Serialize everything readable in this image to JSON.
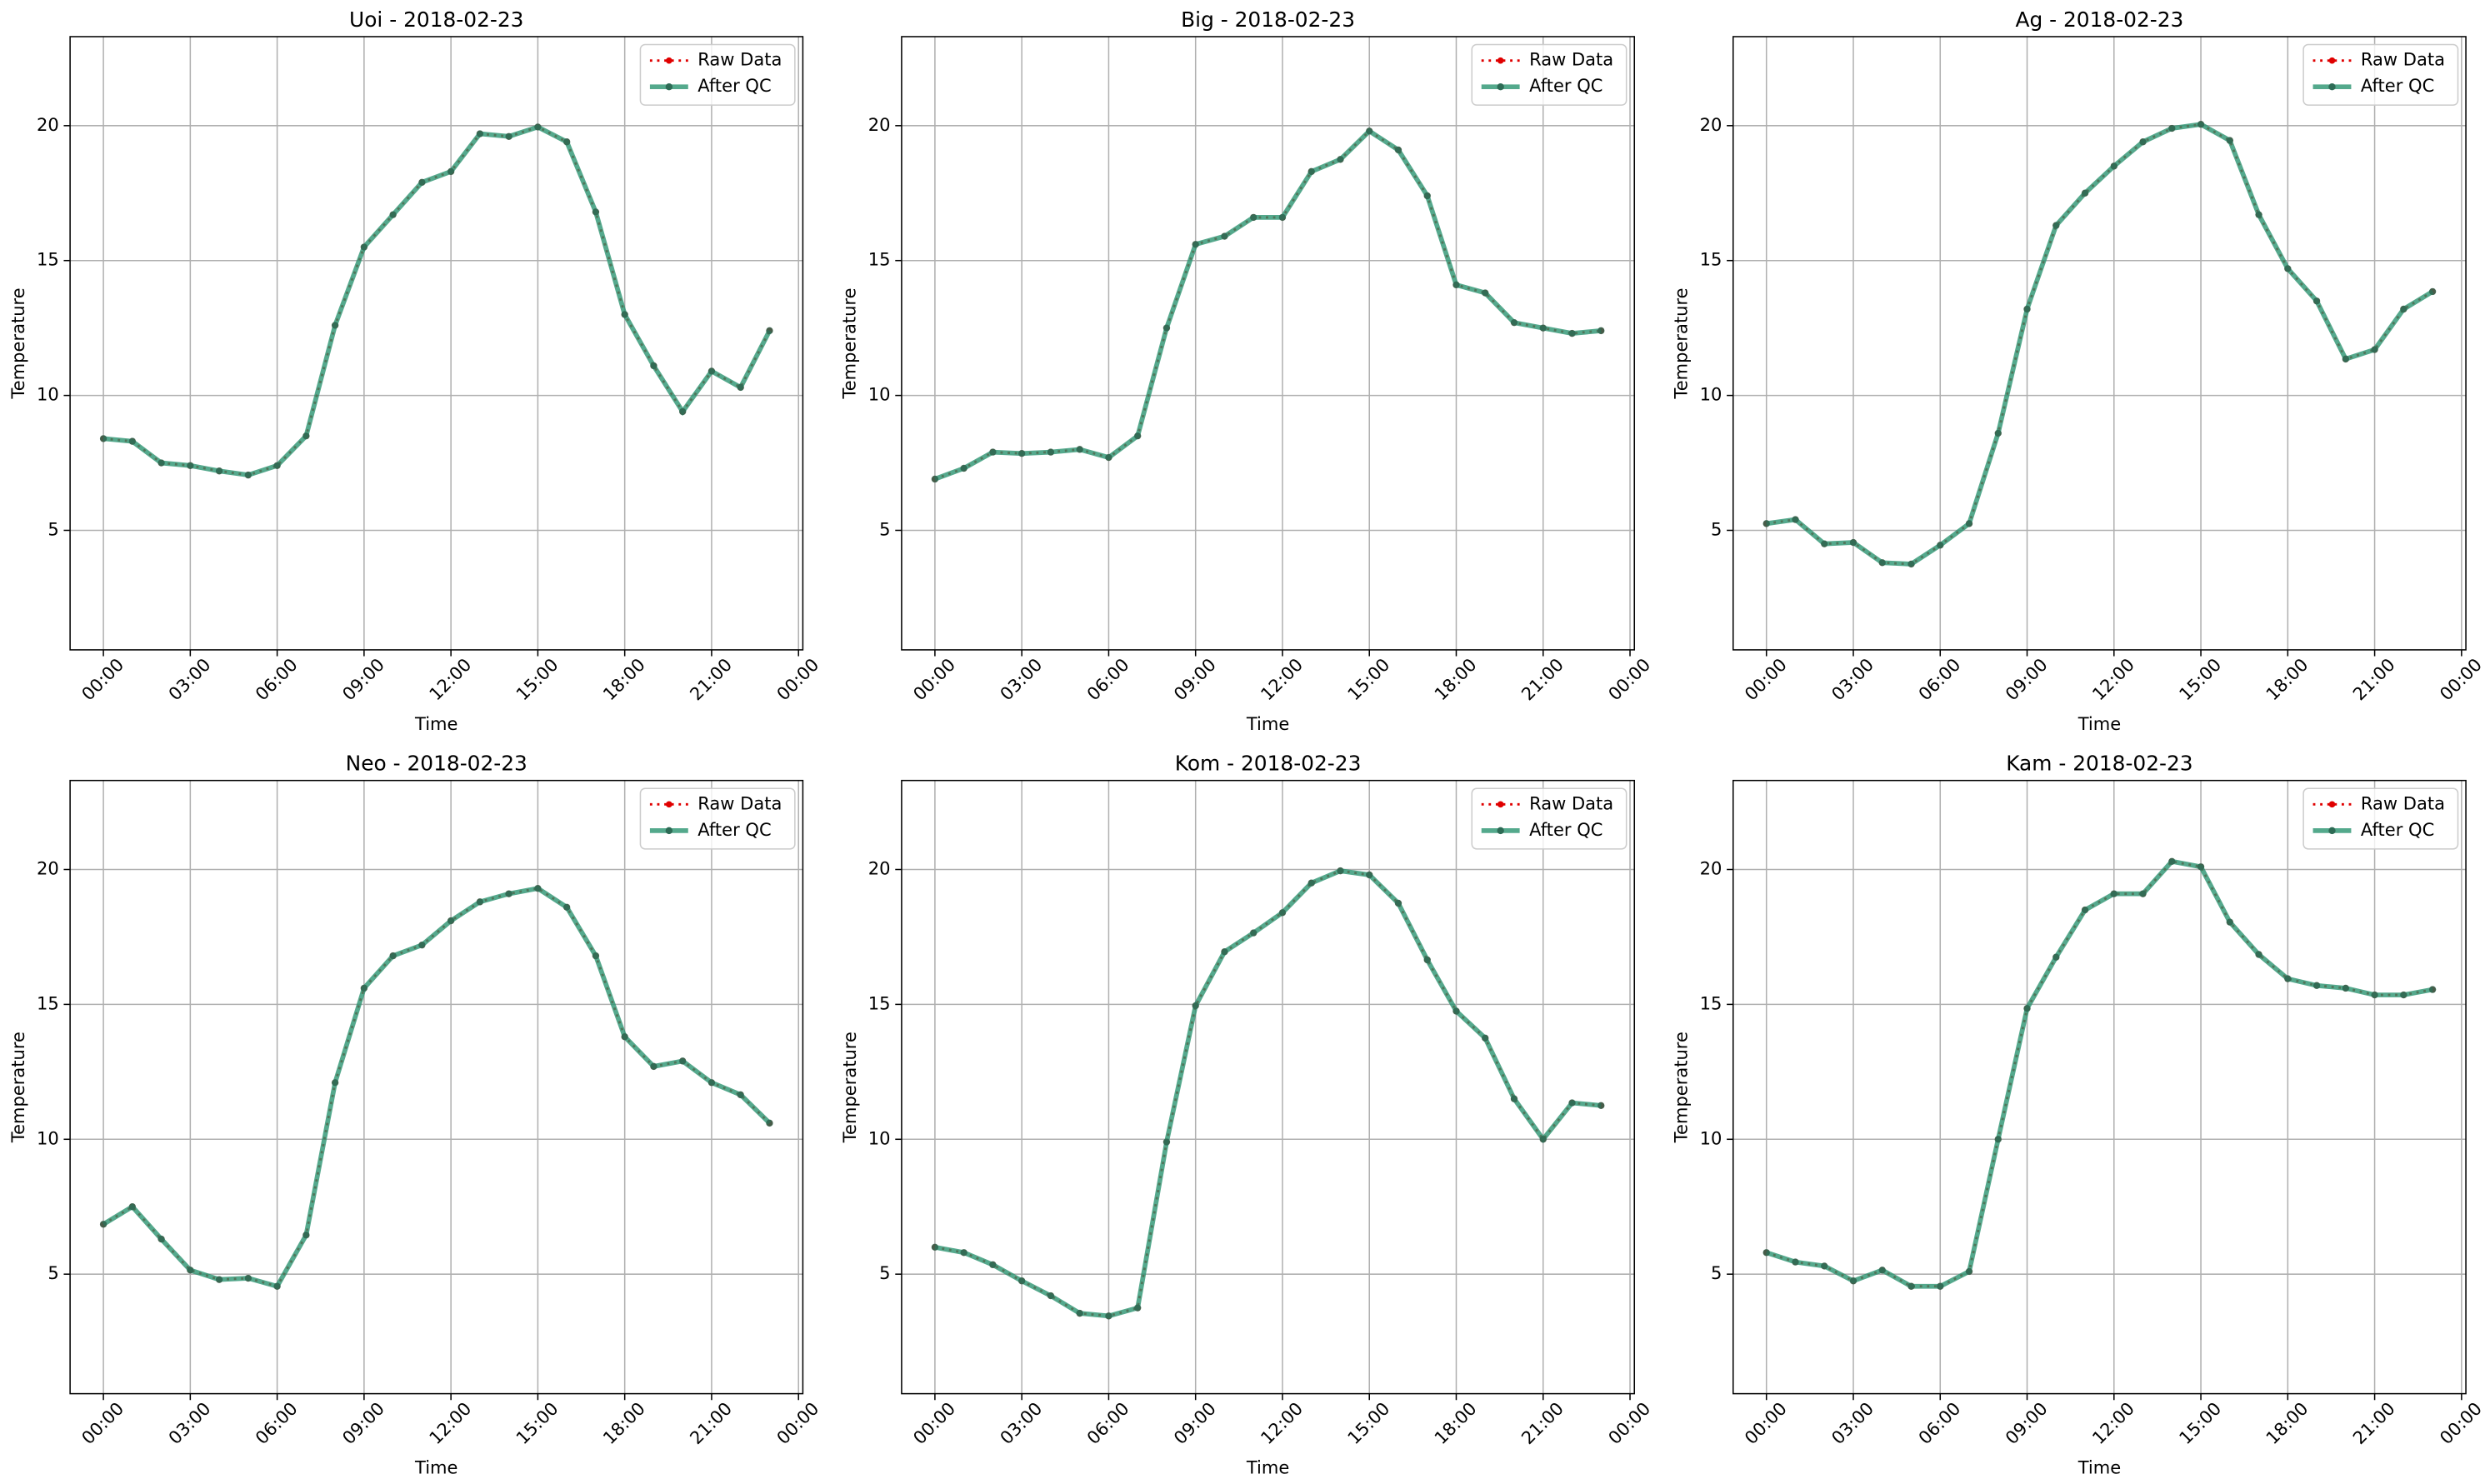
{
  "chart_data": [
    {
      "type": "line",
      "title": "Uoi - 2018-02-23",
      "xlabel": "Time",
      "ylabel": "Temperature",
      "x": [
        0,
        1,
        2,
        3,
        4,
        5,
        6,
        7,
        8,
        9,
        10,
        11,
        12,
        13,
        14,
        15,
        16,
        17,
        18,
        19,
        20,
        21,
        22,
        23
      ],
      "series": [
        {
          "name": "Raw Data",
          "color": "#e00000",
          "values": [
            8.4,
            8.3,
            7.5,
            7.4,
            7.2,
            7.05,
            7.4,
            8.5,
            12.6,
            15.5,
            16.7,
            17.9,
            18.3,
            19.7,
            19.6,
            19.95,
            19.4,
            16.8,
            13.0,
            11.1,
            9.4,
            10.9,
            10.3,
            12.4
          ]
        },
        {
          "name": "After QC",
          "color": "#2a9470",
          "values": [
            8.4,
            8.3,
            7.5,
            7.4,
            7.2,
            7.05,
            7.4,
            8.5,
            12.6,
            15.5,
            16.7,
            17.9,
            18.3,
            19.7,
            19.6,
            19.95,
            19.4,
            16.8,
            13.0,
            11.1,
            9.4,
            10.9,
            10.3,
            12.4
          ]
        }
      ],
      "xlim": [
        -1.15,
        24.15
      ],
      "ylim": [
        0.57,
        23.3
      ],
      "xticks": [
        {
          "value": 0,
          "label": "00:00"
        },
        {
          "value": 3,
          "label": "03:00"
        },
        {
          "value": 6,
          "label": "06:00"
        },
        {
          "value": 9,
          "label": "09:00"
        },
        {
          "value": 12,
          "label": "12:00"
        },
        {
          "value": 15,
          "label": "15:00"
        },
        {
          "value": 18,
          "label": "18:00"
        },
        {
          "value": 21,
          "label": "21:00"
        },
        {
          "value": 24,
          "label": "00:00"
        }
      ],
      "yticks": [
        5,
        10,
        15,
        20
      ],
      "grid": true,
      "legend": "upper right"
    },
    {
      "type": "line",
      "title": "Big - 2018-02-23",
      "xlabel": "Time",
      "ylabel": "Temperature",
      "x": [
        0,
        1,
        2,
        3,
        4,
        5,
        6,
        7,
        8,
        9,
        10,
        11,
        12,
        13,
        14,
        15,
        16,
        17,
        18,
        19,
        20,
        21,
        22,
        23
      ],
      "series": [
        {
          "name": "Raw Data",
          "color": "#e00000",
          "values": [
            6.9,
            7.3,
            7.9,
            7.85,
            7.9,
            8.0,
            7.7,
            8.5,
            12.5,
            15.6,
            15.9,
            16.6,
            16.6,
            18.3,
            18.75,
            19.8,
            19.1,
            17.4,
            14.1,
            13.8,
            12.7,
            12.5,
            12.3,
            12.4
          ]
        },
        {
          "name": "After QC",
          "color": "#2a9470",
          "values": [
            6.9,
            7.3,
            7.9,
            7.85,
            7.9,
            8.0,
            7.7,
            8.5,
            12.5,
            15.6,
            15.9,
            16.6,
            16.6,
            18.3,
            18.75,
            19.8,
            19.1,
            17.4,
            14.1,
            13.8,
            12.7,
            12.5,
            12.3,
            12.4
          ]
        }
      ],
      "xlim": [
        -1.15,
        24.15
      ],
      "ylim": [
        0.57,
        23.3
      ],
      "xticks": [
        {
          "value": 0,
          "label": "00:00"
        },
        {
          "value": 3,
          "label": "03:00"
        },
        {
          "value": 6,
          "label": "06:00"
        },
        {
          "value": 9,
          "label": "09:00"
        },
        {
          "value": 12,
          "label": "12:00"
        },
        {
          "value": 15,
          "label": "15:00"
        },
        {
          "value": 18,
          "label": "18:00"
        },
        {
          "value": 21,
          "label": "21:00"
        },
        {
          "value": 24,
          "label": "00:00"
        }
      ],
      "yticks": [
        5,
        10,
        15,
        20
      ],
      "grid": true,
      "legend": "upper right"
    },
    {
      "type": "line",
      "title": "Ag - 2018-02-23",
      "xlabel": "Time",
      "ylabel": "Temperature",
      "x": [
        0,
        1,
        2,
        3,
        4,
        5,
        6,
        7,
        8,
        9,
        10,
        11,
        12,
        13,
        14,
        15,
        16,
        17,
        18,
        19,
        20,
        21,
        22,
        23
      ],
      "series": [
        {
          "name": "Raw Data",
          "color": "#e00000",
          "values": [
            5.25,
            5.4,
            4.5,
            4.55,
            3.8,
            3.75,
            4.45,
            5.25,
            8.6,
            13.2,
            16.3,
            17.5,
            18.5,
            19.4,
            19.9,
            20.05,
            19.45,
            16.7,
            14.7,
            13.5,
            11.35,
            11.7,
            13.2,
            13.85
          ]
        },
        {
          "name": "After QC",
          "color": "#2a9470",
          "values": [
            5.25,
            5.4,
            4.5,
            4.55,
            3.8,
            3.75,
            4.45,
            5.25,
            8.6,
            13.2,
            16.3,
            17.5,
            18.5,
            19.4,
            19.9,
            20.05,
            19.45,
            16.7,
            14.7,
            13.5,
            11.35,
            11.7,
            13.2,
            13.85
          ]
        }
      ],
      "xlim": [
        -1.15,
        24.15
      ],
      "ylim": [
        0.57,
        23.3
      ],
      "xticks": [
        {
          "value": 0,
          "label": "00:00"
        },
        {
          "value": 3,
          "label": "03:00"
        },
        {
          "value": 6,
          "label": "06:00"
        },
        {
          "value": 9,
          "label": "09:00"
        },
        {
          "value": 12,
          "label": "12:00"
        },
        {
          "value": 15,
          "label": "15:00"
        },
        {
          "value": 18,
          "label": "18:00"
        },
        {
          "value": 21,
          "label": "21:00"
        },
        {
          "value": 24,
          "label": "00:00"
        }
      ],
      "yticks": [
        5,
        10,
        15,
        20
      ],
      "grid": true,
      "legend": "upper right"
    },
    {
      "type": "line",
      "title": "Neo - 2018-02-23",
      "xlabel": "Time",
      "ylabel": "Temperature",
      "x": [
        0,
        1,
        2,
        3,
        4,
        5,
        6,
        7,
        8,
        9,
        10,
        11,
        12,
        13,
        14,
        15,
        16,
        17,
        18,
        19,
        20,
        21,
        22,
        23
      ],
      "series": [
        {
          "name": "Raw Data",
          "color": "#e00000",
          "values": [
            6.85,
            7.5,
            6.3,
            5.15,
            4.8,
            4.85,
            4.55,
            6.45,
            12.1,
            15.6,
            16.8,
            17.2,
            18.1,
            18.8,
            19.1,
            19.3,
            18.6,
            16.8,
            13.8,
            12.7,
            12.9,
            12.1,
            11.65,
            10.6
          ]
        },
        {
          "name": "After QC",
          "color": "#2a9470",
          "values": [
            6.85,
            7.5,
            6.3,
            5.15,
            4.8,
            4.85,
            4.55,
            6.45,
            12.1,
            15.6,
            16.8,
            17.2,
            18.1,
            18.8,
            19.1,
            19.3,
            18.6,
            16.8,
            13.8,
            12.7,
            12.9,
            12.1,
            11.65,
            10.6
          ]
        }
      ],
      "xlim": [
        -1.15,
        24.15
      ],
      "ylim": [
        0.57,
        23.3
      ],
      "xticks": [
        {
          "value": 0,
          "label": "00:00"
        },
        {
          "value": 3,
          "label": "03:00"
        },
        {
          "value": 6,
          "label": "06:00"
        },
        {
          "value": 9,
          "label": "09:00"
        },
        {
          "value": 12,
          "label": "12:00"
        },
        {
          "value": 15,
          "label": "15:00"
        },
        {
          "value": 18,
          "label": "18:00"
        },
        {
          "value": 21,
          "label": "21:00"
        },
        {
          "value": 24,
          "label": "00:00"
        }
      ],
      "yticks": [
        5,
        10,
        15,
        20
      ],
      "grid": true,
      "legend": "upper right"
    },
    {
      "type": "line",
      "title": "Kom - 2018-02-23",
      "xlabel": "Time",
      "ylabel": "Temperature",
      "x": [
        0,
        1,
        2,
        3,
        4,
        5,
        6,
        7,
        8,
        9,
        10,
        11,
        12,
        13,
        14,
        15,
        16,
        17,
        18,
        19,
        20,
        21,
        22,
        23
      ],
      "series": [
        {
          "name": "Raw Data",
          "color": "#e00000",
          "values": [
            6.0,
            5.8,
            5.35,
            4.75,
            4.2,
            3.55,
            3.45,
            3.75,
            9.9,
            14.95,
            16.95,
            17.65,
            18.4,
            19.5,
            19.95,
            19.8,
            18.75,
            16.65,
            14.75,
            13.75,
            11.5,
            10.0,
            11.35,
            11.25
          ]
        },
        {
          "name": "After QC",
          "color": "#2a9470",
          "values": [
            6.0,
            5.8,
            5.35,
            4.75,
            4.2,
            3.55,
            3.45,
            3.75,
            9.9,
            14.95,
            16.95,
            17.65,
            18.4,
            19.5,
            19.95,
            19.8,
            18.75,
            16.65,
            14.75,
            13.75,
            11.5,
            10.0,
            11.35,
            11.25
          ]
        }
      ],
      "xlim": [
        -1.15,
        24.15
      ],
      "ylim": [
        0.57,
        23.3
      ],
      "xticks": [
        {
          "value": 0,
          "label": "00:00"
        },
        {
          "value": 3,
          "label": "03:00"
        },
        {
          "value": 6,
          "label": "06:00"
        },
        {
          "value": 9,
          "label": "09:00"
        },
        {
          "value": 12,
          "label": "12:00"
        },
        {
          "value": 15,
          "label": "15:00"
        },
        {
          "value": 18,
          "label": "18:00"
        },
        {
          "value": 21,
          "label": "21:00"
        },
        {
          "value": 24,
          "label": "00:00"
        }
      ],
      "yticks": [
        5,
        10,
        15,
        20
      ],
      "grid": true,
      "legend": "upper right"
    },
    {
      "type": "line",
      "title": "Kam - 2018-02-23",
      "xlabel": "Time",
      "ylabel": "Temperature",
      "x": [
        0,
        1,
        2,
        3,
        4,
        5,
        6,
        7,
        8,
        9,
        10,
        11,
        12,
        13,
        14,
        15,
        16,
        17,
        18,
        19,
        20,
        21,
        22,
        23
      ],
      "series": [
        {
          "name": "Raw Data",
          "color": "#e00000",
          "values": [
            5.8,
            5.45,
            5.3,
            4.75,
            5.15,
            4.55,
            4.55,
            5.1,
            10.0,
            14.85,
            16.75,
            18.5,
            19.1,
            19.1,
            20.3,
            20.1,
            18.05,
            16.85,
            15.95,
            15.7,
            15.6,
            15.35,
            15.35,
            15.55
          ]
        },
        {
          "name": "After QC",
          "color": "#2a9470",
          "values": [
            5.8,
            5.45,
            5.3,
            4.75,
            5.15,
            4.55,
            4.55,
            5.1,
            10.0,
            14.85,
            16.75,
            18.5,
            19.1,
            19.1,
            20.3,
            20.1,
            18.05,
            16.85,
            15.95,
            15.7,
            15.6,
            15.35,
            15.35,
            15.55
          ]
        }
      ],
      "xlim": [
        -1.15,
        24.15
      ],
      "ylim": [
        0.57,
        23.3
      ],
      "xticks": [
        {
          "value": 0,
          "label": "00:00"
        },
        {
          "value": 3,
          "label": "03:00"
        },
        {
          "value": 6,
          "label": "06:00"
        },
        {
          "value": 9,
          "label": "09:00"
        },
        {
          "value": 12,
          "label": "12:00"
        },
        {
          "value": 15,
          "label": "15:00"
        },
        {
          "value": 18,
          "label": "18:00"
        },
        {
          "value": 21,
          "label": "21:00"
        },
        {
          "value": 24,
          "label": "00:00"
        }
      ],
      "yticks": [
        5,
        10,
        15,
        20
      ],
      "grid": true,
      "legend": "upper right"
    }
  ]
}
